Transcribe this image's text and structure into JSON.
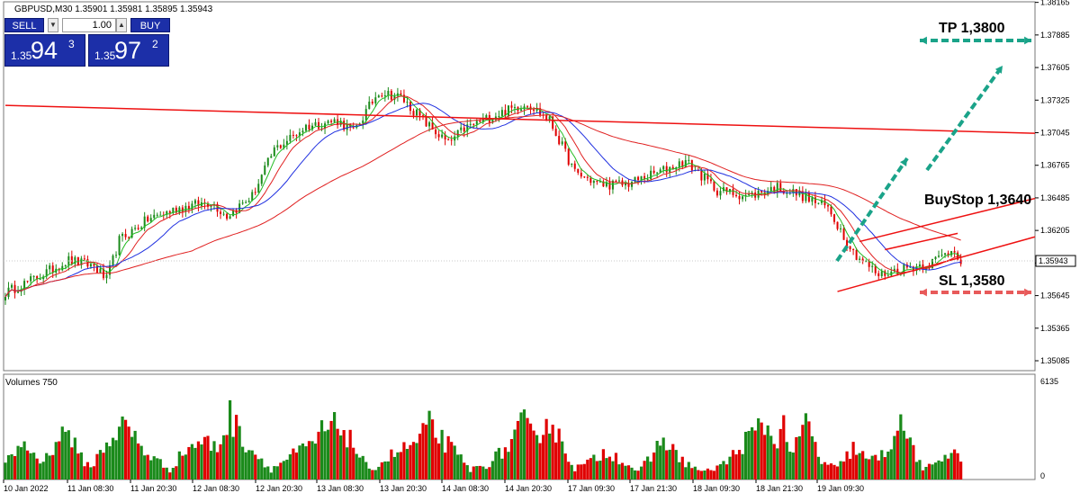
{
  "header": {
    "title": "GBPUSD,M30  1.35901 1.35981 1.35895 1.35943"
  },
  "trade_panel": {
    "sell_label": "SELL",
    "buy_label": "BUY",
    "lot_value": "1.00",
    "sell_price": {
      "prefix": "1.35",
      "big": "94",
      "sup": "3"
    },
    "buy_price": {
      "prefix": "1.35",
      "big": "97",
      "sup": "2"
    }
  },
  "annotations": {
    "tp": "TP 1,3800",
    "buystop": "BuyStop 1,3640",
    "sl": "SL 1,3580"
  },
  "colors": {
    "bull": "#1a8a1a",
    "bear": "#e00000",
    "ma_fast": "#22bb22",
    "ma_mid": "#e02020",
    "ma_slow": "#2030e0",
    "trend": "#ee1111",
    "arrow": "#1aa389",
    "sl_arrow": "#e85a5a",
    "tp_arrow": "#1aa389"
  },
  "chart_data": [
    {
      "type": "candlestick",
      "symbol": "GBPUSD",
      "timeframe": "M30",
      "ylim": [
        1.35,
        1.3817
      ],
      "yticks": [
        "1.38165",
        "1.37885",
        "1.37605",
        "1.37325",
        "1.37045",
        "1.36765",
        "1.36485",
        "1.36205",
        "1.35925",
        "1.35645",
        "1.35365",
        "1.35085"
      ],
      "current_price": "1.35943",
      "xticks": [
        "10 Jan 2022",
        "11 Jan 08:30",
        "11 Jan 20:30",
        "12 Jan 08:30",
        "12 Jan 20:30",
        "13 Jan 08:30",
        "13 Jan 20:30",
        "14 Jan 08:30",
        "14 Jan 20:30",
        "17 Jan 09:30",
        "17 Jan 21:30",
        "18 Jan 09:30",
        "18 Jan 21:30",
        "19 Jan 09:30"
      ],
      "close_anchors": [
        [
          0,
          1.3567
        ],
        [
          10,
          1.358
        ],
        [
          20,
          1.3595
        ],
        [
          28,
          1.359
        ],
        [
          32,
          1.3578
        ],
        [
          36,
          1.3612
        ],
        [
          45,
          1.363
        ],
        [
          55,
          1.364
        ],
        [
          65,
          1.3645
        ],
        [
          70,
          1.3633
        ],
        [
          78,
          1.365
        ],
        [
          85,
          1.369
        ],
        [
          95,
          1.371
        ],
        [
          105,
          1.3715
        ],
        [
          110,
          1.3705
        ],
        [
          118,
          1.374
        ],
        [
          125,
          1.3735
        ],
        [
          132,
          1.3715
        ],
        [
          140,
          1.3695
        ],
        [
          145,
          1.3708
        ],
        [
          155,
          1.372
        ],
        [
          165,
          1.373
        ],
        [
          172,
          1.3715
        ],
        [
          180,
          1.367
        ],
        [
          188,
          1.366
        ],
        [
          196,
          1.366
        ],
        [
          206,
          1.367
        ],
        [
          215,
          1.368
        ],
        [
          225,
          1.3655
        ],
        [
          235,
          1.365
        ],
        [
          244,
          1.3658
        ],
        [
          252,
          1.365
        ],
        [
          260,
          1.364
        ],
        [
          268,
          1.3602
        ],
        [
          276,
          1.3582
        ],
        [
          284,
          1.3588
        ],
        [
          292,
          1.3592
        ],
        [
          300,
          1.3605
        ],
        [
          302,
          1.3594
        ]
      ],
      "moving_averages": [
        {
          "period": 5,
          "color": "#22bb22"
        },
        {
          "period": 10,
          "color": "#e02020"
        },
        {
          "period": 20,
          "color": "#2030e0"
        },
        {
          "period": 60,
          "color": "#e02020"
        }
      ],
      "trendlines": [
        {
          "from": [
            0,
            1.3728
          ],
          "to": [
            330,
            1.3704
          ]
        },
        {
          "from": [
            270,
            1.3611
          ],
          "to": [
            330,
            1.3648
          ]
        },
        {
          "from": [
            263,
            1.3568
          ],
          "to": [
            330,
            1.3615
          ]
        },
        {
          "from": [
            278,
            1.3604
          ],
          "to": [
            301,
            1.3618
          ]
        }
      ]
    },
    {
      "type": "bar",
      "title": "Volumes 750",
      "ylim": [
        0,
        6135
      ],
      "yticks": [
        "6135",
        "0"
      ],
      "peaks": [
        [
          0,
          1200
        ],
        [
          5,
          3000
        ],
        [
          12,
          1400
        ],
        [
          16,
          3200
        ],
        [
          20,
          4200
        ],
        [
          23,
          2000
        ],
        [
          27,
          1000
        ],
        [
          33,
          3400
        ],
        [
          38,
          4500
        ],
        [
          44,
          2300
        ],
        [
          52,
          800
        ],
        [
          57,
          2500
        ],
        [
          62,
          3200
        ],
        [
          67,
          2600
        ],
        [
          71,
          5200
        ],
        [
          76,
          3000
        ],
        [
          84,
          800
        ],
        [
          90,
          1900
        ],
        [
          97,
          2800
        ],
        [
          100,
          3900
        ],
        [
          106,
          4500
        ],
        [
          110,
          2800
        ],
        [
          115,
          700
        ],
        [
          122,
          2000
        ],
        [
          130,
          3000
        ],
        [
          134,
          4400
        ],
        [
          140,
          2800
        ],
        [
          147,
          800
        ],
        [
          152,
          1200
        ],
        [
          159,
          2700
        ],
        [
          164,
          4700
        ],
        [
          167,
          3200
        ],
        [
          171,
          5100
        ],
        [
          176,
          3000
        ],
        [
          180,
          900
        ],
        [
          186,
          1600
        ],
        [
          190,
          2400
        ],
        [
          195,
          1600
        ],
        [
          200,
          600
        ],
        [
          204,
          1800
        ],
        [
          208,
          3500
        ],
        [
          212,
          2000
        ],
        [
          216,
          1200
        ],
        [
          221,
          600
        ],
        [
          228,
          1400
        ],
        [
          234,
          3200
        ],
        [
          240,
          4600
        ],
        [
          243,
          3100
        ],
        [
          246,
          4400
        ],
        [
          249,
          2000
        ],
        [
          253,
          4800
        ],
        [
          258,
          1400
        ],
        [
          263,
          900
        ],
        [
          268,
          2600
        ],
        [
          273,
          1500
        ],
        [
          278,
          2100
        ],
        [
          282,
          4500
        ],
        [
          286,
          3300
        ],
        [
          290,
          600
        ],
        [
          296,
          2000
        ]
      ]
    }
  ]
}
